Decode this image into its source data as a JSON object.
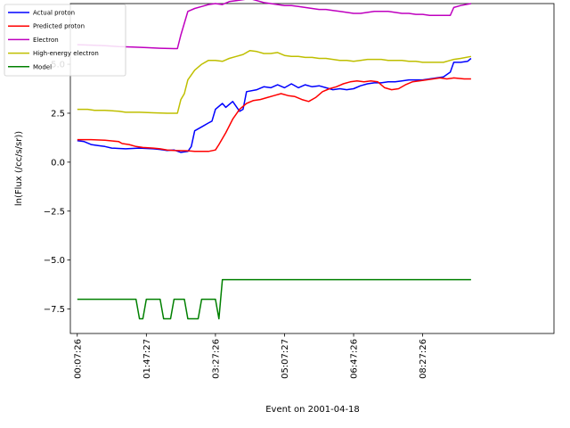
{
  "chart_data": {
    "type": "line",
    "title": "",
    "xlabel": "Event on 2001-04-18",
    "ylabel": "ln(Flux (/cc/s/sr))",
    "xlim": [
      -10,
      690
    ],
    "ylim": [
      -8.75,
      8.1
    ],
    "grid": false,
    "legend_position": "top-left",
    "x_ticks": [
      {
        "value": 0,
        "label": "00:07:26"
      },
      {
        "value": 100,
        "label": "01:47:27"
      },
      {
        "value": 200,
        "label": "03:27:26"
      },
      {
        "value": 300,
        "label": "05:07:27"
      },
      {
        "value": 400,
        "label": "06:47:26"
      },
      {
        "value": 500,
        "label": "08:27:26"
      }
    ],
    "y_ticks": [
      {
        "value": -7.5,
        "label": "−7.5"
      },
      {
        "value": -5.0,
        "label": "−5.0"
      },
      {
        "value": -2.5,
        "label": "−2.5"
      },
      {
        "value": 0.0,
        "label": "0.0"
      },
      {
        "value": 2.5,
        "label": "2.5"
      },
      {
        "value": 5.0,
        "label": "5.0"
      }
    ],
    "x_unit_note": "minutes since 00:07:26",
    "series": [
      {
        "name": "Actual proton",
        "color": "#0000ff",
        "points": [
          [
            0,
            1.1
          ],
          [
            10,
            1.05
          ],
          [
            20,
            0.9
          ],
          [
            30,
            0.85
          ],
          [
            40,
            0.8
          ],
          [
            50,
            0.72
          ],
          [
            60,
            0.7
          ],
          [
            70,
            0.68
          ],
          [
            80,
            0.7
          ],
          [
            90,
            0.72
          ],
          [
            100,
            0.7
          ],
          [
            110,
            0.68
          ],
          [
            120,
            0.65
          ],
          [
            130,
            0.6
          ],
          [
            140,
            0.62
          ],
          [
            150,
            0.5
          ],
          [
            160,
            0.55
          ],
          [
            165,
            0.8
          ],
          [
            170,
            1.6
          ],
          [
            180,
            1.8
          ],
          [
            190,
            2.0
          ],
          [
            195,
            2.1
          ],
          [
            200,
            2.7
          ],
          [
            210,
            3.0
          ],
          [
            215,
            2.8
          ],
          [
            225,
            3.1
          ],
          [
            235,
            2.6
          ],
          [
            240,
            2.7
          ],
          [
            245,
            3.6
          ],
          [
            260,
            3.7
          ],
          [
            270,
            3.85
          ],
          [
            280,
            3.8
          ],
          [
            290,
            3.95
          ],
          [
            300,
            3.8
          ],
          [
            310,
            4.0
          ],
          [
            320,
            3.8
          ],
          [
            330,
            3.95
          ],
          [
            340,
            3.85
          ],
          [
            350,
            3.9
          ],
          [
            360,
            3.8
          ],
          [
            370,
            3.7
          ],
          [
            380,
            3.75
          ],
          [
            390,
            3.7
          ],
          [
            400,
            3.75
          ],
          [
            410,
            3.9
          ],
          [
            420,
            4.0
          ],
          [
            430,
            4.05
          ],
          [
            440,
            4.05
          ],
          [
            450,
            4.1
          ],
          [
            460,
            4.1
          ],
          [
            470,
            4.15
          ],
          [
            480,
            4.2
          ],
          [
            490,
            4.2
          ],
          [
            500,
            4.2
          ],
          [
            510,
            4.25
          ],
          [
            520,
            4.3
          ],
          [
            530,
            4.35
          ],
          [
            540,
            4.6
          ],
          [
            545,
            5.1
          ],
          [
            555,
            5.1
          ],
          [
            565,
            5.15
          ],
          [
            570,
            5.3
          ]
        ]
      },
      {
        "name": "Predicted proton",
        "color": "#ff0000",
        "points": [
          [
            0,
            1.15
          ],
          [
            20,
            1.15
          ],
          [
            40,
            1.12
          ],
          [
            60,
            1.05
          ],
          [
            65,
            0.95
          ],
          [
            75,
            0.9
          ],
          [
            85,
            0.8
          ],
          [
            95,
            0.75
          ],
          [
            110,
            0.72
          ],
          [
            120,
            0.68
          ],
          [
            130,
            0.62
          ],
          [
            140,
            0.6
          ],
          [
            160,
            0.58
          ],
          [
            170,
            0.55
          ],
          [
            190,
            0.55
          ],
          [
            200,
            0.62
          ],
          [
            205,
            0.9
          ],
          [
            215,
            1.5
          ],
          [
            225,
            2.2
          ],
          [
            235,
            2.7
          ],
          [
            245,
            3.0
          ],
          [
            255,
            3.15
          ],
          [
            265,
            3.2
          ],
          [
            275,
            3.3
          ],
          [
            285,
            3.4
          ],
          [
            295,
            3.5
          ],
          [
            305,
            3.4
          ],
          [
            315,
            3.35
          ],
          [
            325,
            3.2
          ],
          [
            335,
            3.1
          ],
          [
            345,
            3.3
          ],
          [
            355,
            3.6
          ],
          [
            365,
            3.75
          ],
          [
            375,
            3.85
          ],
          [
            385,
            4.0
          ],
          [
            395,
            4.1
          ],
          [
            405,
            4.15
          ],
          [
            415,
            4.1
          ],
          [
            425,
            4.15
          ],
          [
            435,
            4.1
          ],
          [
            445,
            3.8
          ],
          [
            455,
            3.7
          ],
          [
            465,
            3.75
          ],
          [
            475,
            3.95
          ],
          [
            485,
            4.1
          ],
          [
            495,
            4.15
          ],
          [
            505,
            4.2
          ],
          [
            515,
            4.25
          ],
          [
            525,
            4.3
          ],
          [
            535,
            4.25
          ],
          [
            545,
            4.3
          ],
          [
            560,
            4.25
          ],
          [
            570,
            4.25
          ]
        ]
      },
      {
        "name": "Electron",
        "color": "#bf00bf",
        "points": [
          [
            0,
            6.0
          ],
          [
            20,
            5.98
          ],
          [
            40,
            5.95
          ],
          [
            60,
            5.9
          ],
          [
            80,
            5.88
          ],
          [
            100,
            5.85
          ],
          [
            120,
            5.82
          ],
          [
            140,
            5.8
          ],
          [
            145,
            5.8
          ],
          [
            150,
            6.5
          ],
          [
            155,
            7.1
          ],
          [
            160,
            7.7
          ],
          [
            170,
            7.85
          ],
          [
            180,
            7.95
          ],
          [
            190,
            8.05
          ],
          [
            200,
            8.1
          ],
          [
            210,
            8.05
          ],
          [
            220,
            8.2
          ],
          [
            230,
            8.25
          ],
          [
            240,
            8.3
          ],
          [
            250,
            8.35
          ],
          [
            260,
            8.25
          ],
          [
            270,
            8.15
          ],
          [
            280,
            8.1
          ],
          [
            290,
            8.05
          ],
          [
            300,
            8.0
          ],
          [
            310,
            8.0
          ],
          [
            320,
            7.95
          ],
          [
            330,
            7.9
          ],
          [
            340,
            7.85
          ],
          [
            350,
            7.8
          ],
          [
            360,
            7.8
          ],
          [
            370,
            7.75
          ],
          [
            380,
            7.7
          ],
          [
            390,
            7.65
          ],
          [
            400,
            7.6
          ],
          [
            410,
            7.6
          ],
          [
            420,
            7.65
          ],
          [
            430,
            7.7
          ],
          [
            440,
            7.7
          ],
          [
            450,
            7.7
          ],
          [
            460,
            7.65
          ],
          [
            470,
            7.6
          ],
          [
            480,
            7.6
          ],
          [
            490,
            7.55
          ],
          [
            500,
            7.55
          ],
          [
            510,
            7.5
          ],
          [
            520,
            7.5
          ],
          [
            530,
            7.5
          ],
          [
            540,
            7.5
          ],
          [
            545,
            7.9
          ],
          [
            555,
            8.0
          ],
          [
            570,
            8.1
          ]
        ]
      },
      {
        "name": "High-energy electron",
        "color": "#bfbf00",
        "points": [
          [
            0,
            2.7
          ],
          [
            15,
            2.7
          ],
          [
            25,
            2.65
          ],
          [
            40,
            2.65
          ],
          [
            60,
            2.6
          ],
          [
            70,
            2.55
          ],
          [
            90,
            2.55
          ],
          [
            110,
            2.52
          ],
          [
            130,
            2.5
          ],
          [
            145,
            2.5
          ],
          [
            150,
            3.2
          ],
          [
            155,
            3.5
          ],
          [
            160,
            4.2
          ],
          [
            170,
            4.7
          ],
          [
            180,
            5.0
          ],
          [
            190,
            5.2
          ],
          [
            200,
            5.2
          ],
          [
            210,
            5.15
          ],
          [
            220,
            5.3
          ],
          [
            230,
            5.4
          ],
          [
            240,
            5.5
          ],
          [
            250,
            5.7
          ],
          [
            260,
            5.65
          ],
          [
            270,
            5.55
          ],
          [
            280,
            5.55
          ],
          [
            290,
            5.6
          ],
          [
            300,
            5.45
          ],
          [
            310,
            5.4
          ],
          [
            320,
            5.4
          ],
          [
            330,
            5.35
          ],
          [
            340,
            5.35
          ],
          [
            350,
            5.3
          ],
          [
            360,
            5.3
          ],
          [
            370,
            5.25
          ],
          [
            380,
            5.2
          ],
          [
            390,
            5.2
          ],
          [
            400,
            5.15
          ],
          [
            410,
            5.2
          ],
          [
            420,
            5.25
          ],
          [
            430,
            5.25
          ],
          [
            440,
            5.25
          ],
          [
            450,
            5.2
          ],
          [
            460,
            5.2
          ],
          [
            470,
            5.2
          ],
          [
            480,
            5.15
          ],
          [
            490,
            5.15
          ],
          [
            500,
            5.1
          ],
          [
            510,
            5.1
          ],
          [
            520,
            5.1
          ],
          [
            530,
            5.1
          ],
          [
            540,
            5.2
          ],
          [
            545,
            5.25
          ],
          [
            555,
            5.3
          ],
          [
            570,
            5.4
          ]
        ]
      },
      {
        "name": "Model",
        "color": "#008000",
        "points": [
          [
            0,
            -7.0
          ],
          [
            85,
            -7.0
          ],
          [
            90,
            -8.0
          ],
          [
            95,
            -8.0
          ],
          [
            100,
            -7.0
          ],
          [
            120,
            -7.0
          ],
          [
            125,
            -8.0
          ],
          [
            135,
            -8.0
          ],
          [
            140,
            -7.0
          ],
          [
            155,
            -7.0
          ],
          [
            160,
            -8.0
          ],
          [
            175,
            -8.0
          ],
          [
            180,
            -7.0
          ],
          [
            200,
            -7.0
          ],
          [
            205,
            -8.0
          ],
          [
            210,
            -6.0
          ],
          [
            570,
            -6.0
          ]
        ]
      }
    ]
  }
}
